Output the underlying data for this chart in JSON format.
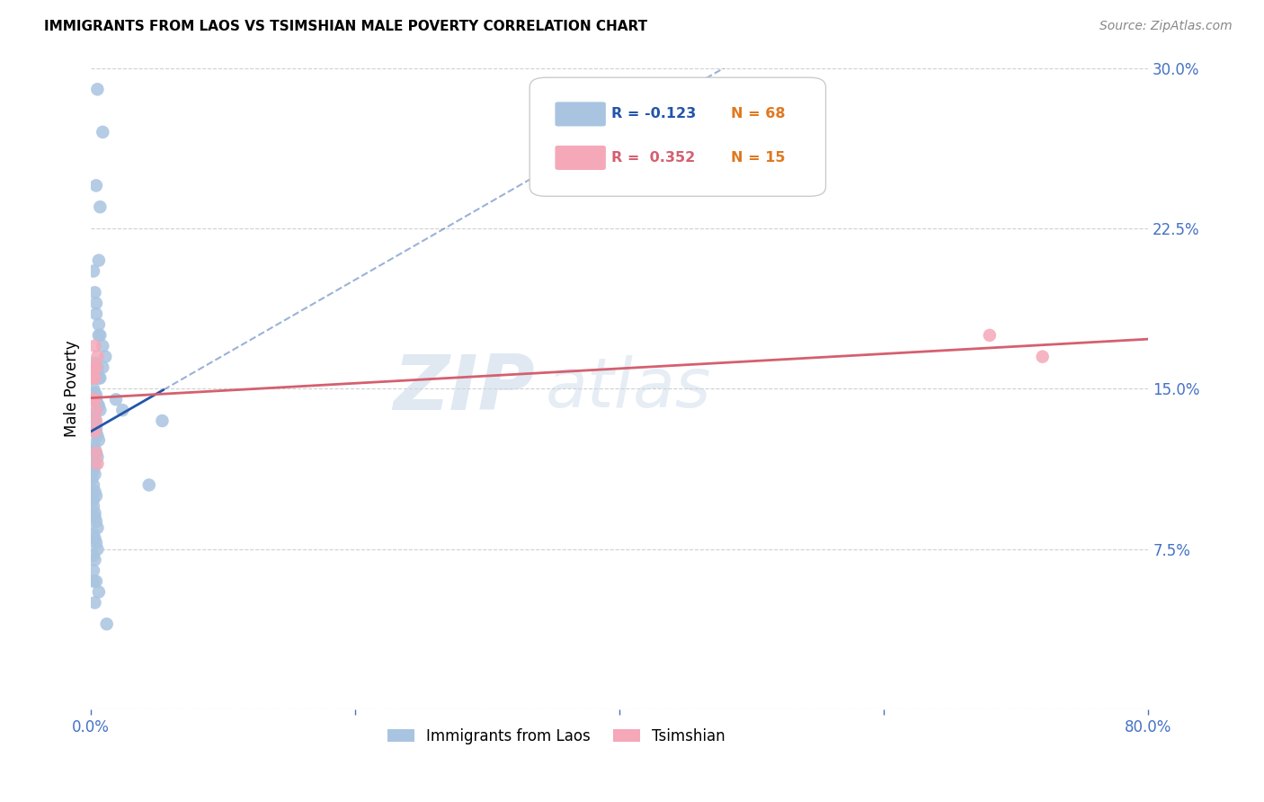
{
  "title": "IMMIGRANTS FROM LAOS VS TSIMSHIAN MALE POVERTY CORRELATION CHART",
  "source": "Source: ZipAtlas.com",
  "ylabel": "Male Poverty",
  "watermark_line1": "ZIP",
  "watermark_line2": "atlas",
  "xlim": [
    0.0,
    0.8
  ],
  "ylim": [
    0.0,
    0.3
  ],
  "xtick_positions": [
    0.0,
    0.2,
    0.4,
    0.6,
    0.8
  ],
  "xticklabels": [
    "0.0%",
    "",
    "",
    "",
    "80.0%"
  ],
  "ytick_positions": [
    0.0,
    0.075,
    0.15,
    0.225,
    0.3
  ],
  "yticklabels_right": [
    "",
    "7.5%",
    "15.0%",
    "22.5%",
    "30.0%"
  ],
  "legend_r_laos": "-0.123",
  "legend_n_laos": "68",
  "legend_r_tsimshian": "0.352",
  "legend_n_tsimshian": "15",
  "laos_color": "#a8c4e0",
  "tsimshian_color": "#f4a8b8",
  "laos_line_color": "#2255aa",
  "tsimshian_line_color": "#d46070",
  "laos_x": [
    0.005,
    0.009,
    0.004,
    0.007,
    0.006,
    0.002,
    0.003,
    0.004,
    0.004,
    0.006,
    0.006,
    0.007,
    0.009,
    0.011,
    0.003,
    0.005,
    0.005,
    0.006,
    0.007,
    0.009,
    0.002,
    0.003,
    0.004,
    0.004,
    0.005,
    0.006,
    0.007,
    0.002,
    0.003,
    0.003,
    0.004,
    0.004,
    0.005,
    0.006,
    0.002,
    0.003,
    0.004,
    0.005,
    0.002,
    0.003,
    0.002,
    0.003,
    0.001,
    0.002,
    0.003,
    0.004,
    0.019,
    0.024,
    0.044,
    0.054,
    0.002,
    0.002,
    0.003,
    0.003,
    0.004,
    0.005,
    0.002,
    0.003,
    0.004,
    0.005,
    0.002,
    0.003,
    0.002,
    0.012,
    0.004,
    0.006,
    0.003,
    0.002
  ],
  "laos_y": [
    0.29,
    0.27,
    0.245,
    0.235,
    0.21,
    0.205,
    0.195,
    0.19,
    0.185,
    0.18,
    0.175,
    0.175,
    0.17,
    0.165,
    0.162,
    0.16,
    0.157,
    0.155,
    0.155,
    0.16,
    0.15,
    0.148,
    0.147,
    0.145,
    0.143,
    0.142,
    0.14,
    0.138,
    0.136,
    0.134,
    0.132,
    0.13,
    0.128,
    0.126,
    0.124,
    0.122,
    0.12,
    0.118,
    0.116,
    0.114,
    0.112,
    0.11,
    0.108,
    0.105,
    0.102,
    0.1,
    0.145,
    0.14,
    0.105,
    0.135,
    0.098,
    0.095,
    0.092,
    0.09,
    0.088,
    0.085,
    0.082,
    0.08,
    0.078,
    0.075,
    0.072,
    0.07,
    0.065,
    0.04,
    0.06,
    0.055,
    0.05,
    0.06
  ],
  "tsimshian_x": [
    0.001,
    0.002,
    0.002,
    0.003,
    0.003,
    0.004,
    0.004,
    0.005,
    0.003,
    0.003,
    0.004,
    0.004,
    0.005,
    0.68,
    0.72
  ],
  "tsimshian_y": [
    0.155,
    0.16,
    0.145,
    0.17,
    0.155,
    0.16,
    0.14,
    0.165,
    0.13,
    0.145,
    0.135,
    0.12,
    0.115,
    0.175,
    0.165
  ],
  "background_color": "#ffffff",
  "grid_color": "#d0d0d0",
  "tick_color": "#4472c4",
  "n_color": "#e07820"
}
